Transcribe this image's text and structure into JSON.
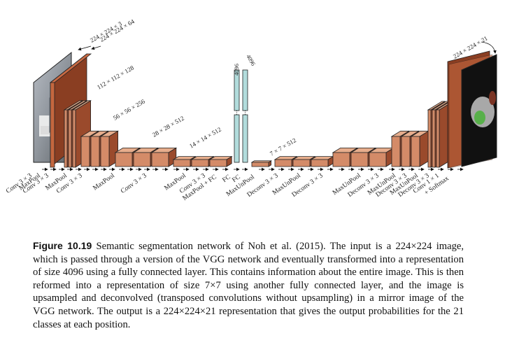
{
  "figure": {
    "number": "Figure 10.19",
    "caption": "Semantic segmentation network of Noh et al. (2015). The input is a 224×224 image, which is passed through a version of the VGG network and eventually transformed into a representation of size 4096 using a fully connected layer. This contains information about the entire image. This is then reformed into a representation of size 7×7 using another fully connected layer, and the image is upsampled and deconvolved (transposed convolutions without upsampling) in a mirror image of the VGG network. The output is a 224×224×21 representation that gives the output probabilities for the 21 classes at each position."
  },
  "dimensions": {
    "input": "224 × 224 × 3",
    "conv1": "224 × 224 × 64",
    "block2": "112 × 112 × 128",
    "block3": "56 × 56 × 256",
    "block4": "28 × 28 × 512",
    "block5": "14 × 14 × 512",
    "fc_a": "4096",
    "fc_b": "4096",
    "reformed": "7 × 7 × 512",
    "output": "224 × 224 × 21"
  },
  "layer_labels": [
    "Conv 3 × 3",
    "MaxPool",
    "Conv 3 × 3",
    "MaxPool",
    "Conv 3 × 3",
    "MaxPool",
    "Conv 3 × 3",
    "MaxPool",
    "Conv 3 × 3",
    "MaxPool + FC",
    "FC",
    "FC",
    "MaxUnPool",
    "Deconv 3 × 3",
    "MaxUnPool",
    "Deconv 3 × 3",
    "MaxUnPool",
    "Deconv 3 × 3",
    "MaxUnPool",
    "Deconv 3 × 3",
    "MaxUnPool",
    "Deconv 3 × 3",
    "Conv 1 × 1",
    "+ Softmax"
  ],
  "colors": {
    "block_front": "#d48b68",
    "block_top": "#e7ad8c",
    "block_side": "#9a4a2c",
    "thin_front": "#c8693f",
    "input_dark": "#8a3e22",
    "fc_fill": "#b2dcdc",
    "output_bg": "#111111",
    "output_grey": "#a8a8a8",
    "output_green": "#58b04a",
    "output_brown": "#7a3424"
  }
}
